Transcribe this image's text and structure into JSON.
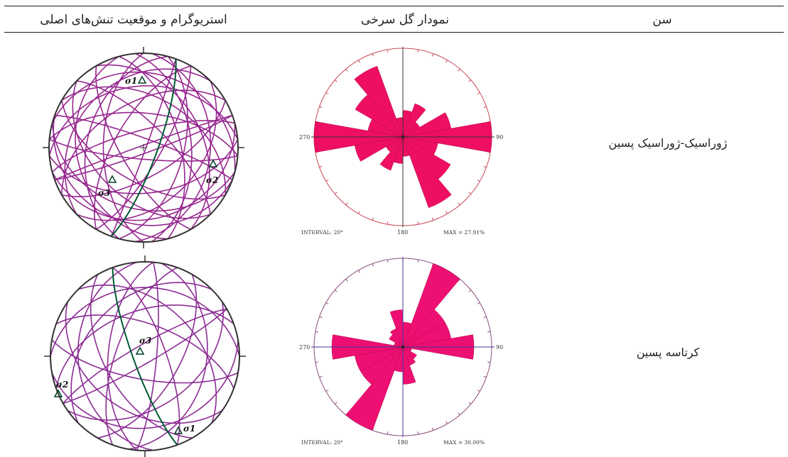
{
  "table": {
    "headers": {
      "stereogram": "استریوگرام و موقعیت تنش‌های اصلی",
      "rose": "نمودار گل سرخی",
      "age": "سن"
    },
    "rows": [
      {
        "age": "ژوراسیک-ژوراسیک پسین",
        "rose": {
          "interval": "INTERVAL: 20°",
          "max": "MAX = 27.91%",
          "label_270": "270",
          "label_90": "90",
          "label_180": "180",
          "petals": [
            {
              "from": 0,
              "to": 20,
              "r": 0.3
            },
            {
              "from": 20,
              "to": 40,
              "r": 0.4
            },
            {
              "from": 40,
              "to": 60,
              "r": 0.22
            },
            {
              "from": 60,
              "to": 80,
              "r": 0.55
            },
            {
              "from": 80,
              "to": 100,
              "r": 1.0
            },
            {
              "from": 100,
              "to": 120,
              "r": 0.4
            },
            {
              "from": 120,
              "to": 140,
              "r": 0.62
            },
            {
              "from": 140,
              "to": 160,
              "r": 0.85
            },
            {
              "from": 160,
              "to": 180,
              "r": 0.22
            },
            {
              "from": 180,
              "to": 200,
              "r": 0.3
            },
            {
              "from": 200,
              "to": 220,
              "r": 0.4
            },
            {
              "from": 220,
              "to": 240,
              "r": 0.22
            },
            {
              "from": 240,
              "to": 260,
              "r": 0.55
            },
            {
              "from": 260,
              "to": 280,
              "r": 1.0
            },
            {
              "from": 280,
              "to": 300,
              "r": 0.4
            },
            {
              "from": 300,
              "to": 320,
              "r": 0.62
            },
            {
              "from": 320,
              "to": 340,
              "r": 0.85
            },
            {
              "from": 340,
              "to": 360,
              "r": 0.22
            }
          ],
          "colors": {
            "fill": "#ee0f63",
            "circle": "#c9495a",
            "axis": "#333333"
          }
        },
        "stereo": {
          "labels": {
            "s1": "σ1",
            "s2": "σ2",
            "s3": "σ3"
          },
          "great_circles": [
            {
              "strike": 5,
              "dip": 30
            },
            {
              "strike": 15,
              "dip": 55
            },
            {
              "strike": 30,
              "dip": 75
            },
            {
              "strike": 45,
              "dip": 40
            },
            {
              "strike": 60,
              "dip": 65
            },
            {
              "strike": 75,
              "dip": 25
            },
            {
              "strike": 85,
              "dip": 50
            },
            {
              "strike": 95,
              "dip": 80
            },
            {
              "strike": 105,
              "dip": 35
            },
            {
              "strike": 120,
              "dip": 60
            },
            {
              "strike": 135,
              "dip": 45
            },
            {
              "strike": 150,
              "dip": 70
            },
            {
              "strike": 165,
              "dip": 30
            },
            {
              "strike": 180,
              "dip": 55
            },
            {
              "strike": 195,
              "dip": 40
            },
            {
              "strike": 210,
              "dip": 65
            },
            {
              "strike": 225,
              "dip": 28
            },
            {
              "strike": 240,
              "dip": 50
            },
            {
              "strike": 255,
              "dip": 75
            },
            {
              "strike": 265,
              "dip": 35
            },
            {
              "strike": 275,
              "dip": 60
            },
            {
              "strike": 285,
              "dip": 22
            },
            {
              "strike": 300,
              "dip": 45
            },
            {
              "strike": 315,
              "dip": 70
            },
            {
              "strike": 330,
              "dip": 38
            },
            {
              "strike": 345,
              "dip": 58
            },
            {
              "strike": 355,
              "dip": 48
            },
            {
              "strike": 70,
              "dip": 85
            },
            {
              "strike": 250,
              "dip": 88
            },
            {
              "strike": 110,
              "dip": 20
            },
            {
              "strike": 290,
              "dip": 82
            },
            {
              "strike": 20,
              "dip": 88
            }
          ],
          "plane": {
            "strike": 20,
            "dip": 78
          },
          "colors": {
            "circles": "#96278f",
            "plane": "#005b32",
            "frame": "#333333"
          }
        }
      },
      {
        "age": "کرتاسه پسین",
        "rose": {
          "interval": "INTERVAL: 20°",
          "max": "MAX = 30.00%",
          "label_270": "270",
          "label_90": "90",
          "label_180": "180",
          "petals": [
            {
              "from": 0,
              "to": 20,
              "r": 0.28
            },
            {
              "from": 20,
              "to": 40,
              "r": 1.0
            },
            {
              "from": 40,
              "to": 60,
              "r": 0.55
            },
            {
              "from": 60,
              "to": 80,
              "r": 0.55
            },
            {
              "from": 80,
              "to": 100,
              "r": 0.8
            },
            {
              "from": 100,
              "to": 120,
              "r": 0.1
            },
            {
              "from": 120,
              "to": 140,
              "r": 0.18
            },
            {
              "from": 140,
              "to": 160,
              "r": 0.22
            },
            {
              "from": 160,
              "to": 180,
              "r": 0.42
            },
            {
              "from": 180,
              "to": 200,
              "r": 0.28
            },
            {
              "from": 200,
              "to": 220,
              "r": 1.0
            },
            {
              "from": 220,
              "to": 240,
              "r": 0.55
            },
            {
              "from": 240,
              "to": 260,
              "r": 0.55
            },
            {
              "from": 260,
              "to": 280,
              "r": 0.8
            },
            {
              "from": 280,
              "to": 300,
              "r": 0.1
            },
            {
              "from": 300,
              "to": 320,
              "r": 0.18
            },
            {
              "from": 320,
              "to": 340,
              "r": 0.22
            },
            {
              "from": 340,
              "to": 360,
              "r": 0.42
            }
          ],
          "colors": {
            "fill": "#ee0f73",
            "circle": "#8a4f7c",
            "axis": "#3b3b9a"
          }
        },
        "stereo": {
          "labels": {
            "s1": "σ1",
            "s2": "σ2",
            "s3": "σ3"
          },
          "great_circles": [
            {
              "strike": 10,
              "dip": 35
            },
            {
              "strike": 30,
              "dip": 60
            },
            {
              "strike": 55,
              "dip": 45
            },
            {
              "strike": 80,
              "dip": 25
            },
            {
              "strike": 100,
              "dip": 70
            },
            {
              "strike": 125,
              "dip": 40
            },
            {
              "strike": 150,
              "dip": 55
            },
            {
              "strike": 175,
              "dip": 30
            },
            {
              "strike": 200,
              "dip": 65
            },
            {
              "strike": 225,
              "dip": 38
            },
            {
              "strike": 250,
              "dip": 50
            },
            {
              "strike": 270,
              "dip": 28
            },
            {
              "strike": 290,
              "dip": 62
            },
            {
              "strike": 315,
              "dip": 44
            },
            {
              "strike": 340,
              "dip": 72
            },
            {
              "strike": 60,
              "dip": 84
            },
            {
              "strike": 240,
              "dip": 80
            },
            {
              "strike": 5,
              "dip": 80
            },
            {
              "strike": 185,
              "dip": 58
            }
          ],
          "plane": {
            "strike": 160,
            "dip": 80
          },
          "colors": {
            "circles": "#8b2c93",
            "plane": "#005b32",
            "frame": "#333333"
          }
        }
      }
    ]
  }
}
